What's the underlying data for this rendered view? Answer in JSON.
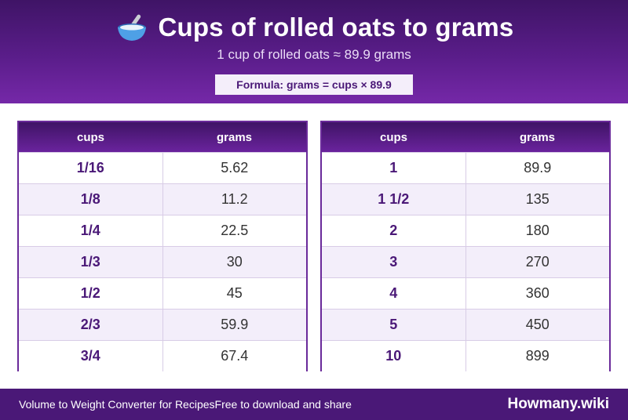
{
  "header": {
    "icon": "bowl-with-spoon-icon",
    "title": "Cups of rolled oats to grams",
    "subtitle": "1 cup of rolled oats ≈ 89.9 grams",
    "formula": "Formula: grams = cups × 89.9"
  },
  "tables": {
    "left": {
      "col_cups": "cups",
      "col_grams": "grams",
      "rows": [
        {
          "cups": "1/16",
          "grams": "5.62"
        },
        {
          "cups": "1/8",
          "grams": "11.2"
        },
        {
          "cups": "1/4",
          "grams": "22.5"
        },
        {
          "cups": "1/3",
          "grams": "30"
        },
        {
          "cups": "1/2",
          "grams": "45"
        },
        {
          "cups": "2/3",
          "grams": "59.9"
        },
        {
          "cups": "3/4",
          "grams": "67.4"
        }
      ]
    },
    "right": {
      "col_cups": "cups",
      "col_grams": "grams",
      "rows": [
        {
          "cups": "1",
          "grams": "89.9"
        },
        {
          "cups": "1 1/2",
          "grams": "135"
        },
        {
          "cups": "2",
          "grams": "180"
        },
        {
          "cups": "3",
          "grams": "270"
        },
        {
          "cups": "4",
          "grams": "360"
        },
        {
          "cups": "5",
          "grams": "450"
        },
        {
          "cups": "10",
          "grams": "899"
        }
      ]
    }
  },
  "footer": {
    "caption": "Volume to Weight Converter for RecipesFree to download and share",
    "brand": "Howmany.wiki"
  },
  "colors": {
    "primary": "#4a1877",
    "accent": "#6a2a9a",
    "row_alt": "#f3eefa"
  }
}
